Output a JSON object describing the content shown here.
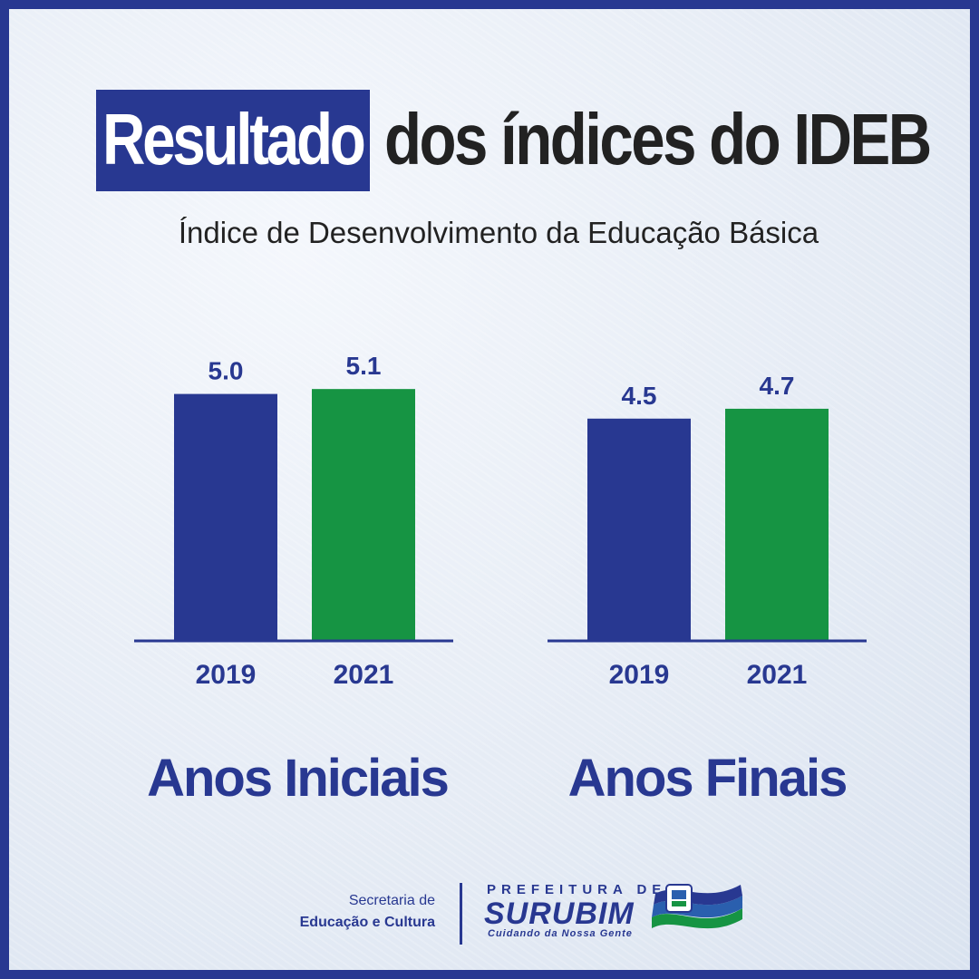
{
  "header": {
    "title_highlight": "Resultado",
    "title_rest": "dos índices do IDEB",
    "subtitle": "Índice de Desenvolvimento da Educação Básica"
  },
  "colors": {
    "navy": "#283891",
    "green": "#169443",
    "text_dark": "#222222",
    "white": "#ffffff"
  },
  "chart_data": [
    {
      "type": "bar",
      "title": "Anos Iniciais",
      "categories": [
        "2019",
        "2021"
      ],
      "values": [
        5.0,
        5.1
      ],
      "value_labels": [
        "5.0",
        "5.1"
      ],
      "bar_colors": [
        "#283891",
        "#169443"
      ],
      "grid": false,
      "xlabel": "",
      "ylabel": ""
    },
    {
      "type": "bar",
      "title": "Anos Finais",
      "categories": [
        "2019",
        "2021"
      ],
      "values": [
        4.5,
        4.7
      ],
      "value_labels": [
        "4.5",
        "4.7"
      ],
      "bar_colors": [
        "#283891",
        "#169443"
      ],
      "grid": false,
      "xlabel": "",
      "ylabel": ""
    }
  ],
  "footer": {
    "dept_line1": "Secretaria de",
    "dept_line2": "Educação e Cultura",
    "logo_top": "PREFEITURA DE",
    "logo_main": "SURUBIM",
    "logo_tagline": "Cuidando da Nossa Gente",
    "emblem_icon": "city-flag-emblem-icon"
  }
}
